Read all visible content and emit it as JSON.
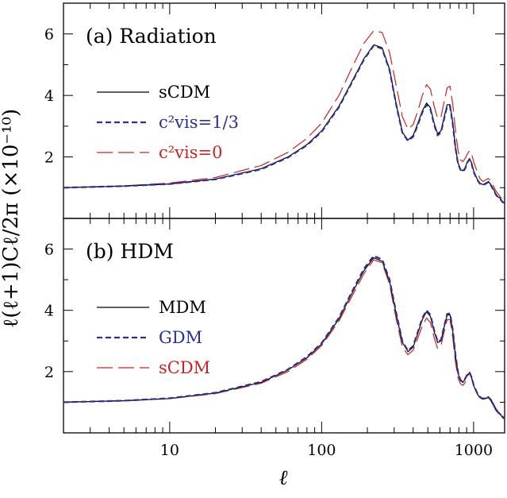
{
  "chart_data": [
    {
      "type": "line",
      "panel_label": "(a) Radiation",
      "x_scale": "log",
      "xlim": [
        2,
        1600
      ],
      "ylim": [
        0,
        7
      ],
      "y_ticks": [
        "2",
        "4",
        "6"
      ],
      "x_ticks": [
        "10",
        "100",
        "1000"
      ],
      "legend_position": "left",
      "series": [
        {
          "name": "sCDM",
          "color": "#000000",
          "dash": "solid",
          "x": [
            2,
            5,
            10,
            20,
            40,
            60,
            80,
            100,
            130,
            160,
            190,
            220,
            250,
            280,
            310,
            340,
            370,
            400,
            430,
            460,
            490,
            520,
            550,
            580,
            610,
            640,
            670,
            700,
            730,
            760,
            790,
            820,
            850,
            880,
            910,
            940,
            970,
            1000,
            1050,
            1100,
            1150,
            1200,
            1250,
            1300,
            1350,
            1400,
            1450,
            1500,
            1550,
            1600
          ],
          "y": [
            1.0,
            1.05,
            1.12,
            1.28,
            1.62,
            2.0,
            2.4,
            2.85,
            3.65,
            4.5,
            5.2,
            5.65,
            5.55,
            4.85,
            3.7,
            2.8,
            2.55,
            2.7,
            3.1,
            3.5,
            3.75,
            3.6,
            3.1,
            2.75,
            2.85,
            3.3,
            3.7,
            3.7,
            3.1,
            2.3,
            1.8,
            1.6,
            1.55,
            1.65,
            1.85,
            1.95,
            1.8,
            1.55,
            1.3,
            1.15,
            1.1,
            1.15,
            1.2,
            1.1,
            0.95,
            0.8,
            0.7,
            0.65,
            0.55,
            0.5
          ]
        },
        {
          "name": "c²vis=1/3",
          "color": "#2b2f8f",
          "dash": "short",
          "x": [
            2,
            5,
            10,
            20,
            40,
            60,
            80,
            100,
            130,
            160,
            190,
            220,
            250,
            280,
            310,
            340,
            370,
            400,
            430,
            460,
            490,
            520,
            550,
            580,
            610,
            640,
            670,
            700,
            730,
            760,
            790,
            820,
            850,
            880,
            910,
            940,
            970,
            1000,
            1050,
            1100,
            1150,
            1200,
            1250,
            1300,
            1350,
            1400,
            1450,
            1500,
            1550,
            1600
          ],
          "y": [
            1.0,
            1.05,
            1.12,
            1.27,
            1.6,
            1.98,
            2.38,
            2.82,
            3.62,
            4.47,
            5.17,
            5.62,
            5.52,
            4.82,
            3.68,
            2.78,
            2.52,
            2.66,
            3.05,
            3.45,
            3.7,
            3.55,
            3.05,
            2.7,
            2.8,
            3.25,
            3.65,
            3.65,
            3.05,
            2.28,
            1.78,
            1.58,
            1.52,
            1.62,
            1.82,
            1.92,
            1.78,
            1.52,
            1.28,
            1.13,
            1.08,
            1.13,
            1.18,
            1.08,
            0.93,
            0.78,
            0.68,
            0.63,
            0.53,
            0.48
          ]
        },
        {
          "name": "c²vis=0",
          "color": "#cc2222",
          "dash": "long",
          "x": [
            2,
            5,
            10,
            20,
            40,
            60,
            80,
            100,
            130,
            160,
            190,
            220,
            250,
            280,
            310,
            340,
            370,
            400,
            430,
            460,
            490,
            520,
            550,
            580,
            610,
            640,
            670,
            700,
            730,
            760,
            790,
            820,
            850,
            880,
            910,
            940,
            970,
            1000,
            1050,
            1100,
            1150,
            1200,
            1250,
            1300,
            1350,
            1400,
            1450,
            1500,
            1550,
            1600
          ],
          "y": [
            1.0,
            1.06,
            1.15,
            1.33,
            1.72,
            2.15,
            2.6,
            3.1,
            4.0,
            4.95,
            5.7,
            6.1,
            6.05,
            5.4,
            4.3,
            3.3,
            2.9,
            3.05,
            3.5,
            4.0,
            4.35,
            4.2,
            3.65,
            3.25,
            3.3,
            3.8,
            4.25,
            4.3,
            3.7,
            2.85,
            2.2,
            1.9,
            1.85,
            1.95,
            2.1,
            2.2,
            2.1,
            1.85,
            1.55,
            1.3,
            1.2,
            1.25,
            1.3,
            1.2,
            1.05,
            0.9,
            0.8,
            0.7,
            0.6,
            0.55
          ]
        }
      ]
    },
    {
      "type": "line",
      "panel_label": "(b) HDM",
      "x_scale": "log",
      "xlim": [
        2,
        1600
      ],
      "ylim": [
        0,
        7
      ],
      "y_ticks": [
        "2",
        "4",
        "6"
      ],
      "x_ticks": [
        "10",
        "100",
        "1000"
      ],
      "legend_position": "left",
      "series": [
        {
          "name": "MDM",
          "color": "#000000",
          "dash": "solid",
          "x": [
            2,
            5,
            10,
            20,
            40,
            60,
            80,
            100,
            130,
            160,
            190,
            220,
            250,
            280,
            310,
            340,
            370,
            400,
            430,
            460,
            490,
            520,
            550,
            580,
            610,
            640,
            670,
            700,
            730,
            760,
            790,
            820,
            850,
            880,
            910,
            940,
            970,
            1000,
            1050,
            1100,
            1150,
            1200,
            1250,
            1300,
            1350,
            1400,
            1450,
            1500,
            1550,
            1600
          ],
          "y": [
            1.0,
            1.05,
            1.12,
            1.3,
            1.65,
            2.05,
            2.45,
            2.9,
            3.72,
            4.6,
            5.3,
            5.72,
            5.6,
            4.95,
            3.85,
            2.95,
            2.65,
            2.8,
            3.25,
            3.7,
            3.95,
            3.8,
            3.3,
            2.95,
            3.0,
            3.45,
            3.85,
            3.85,
            3.3,
            2.5,
            1.95,
            1.7,
            1.65,
            1.75,
            1.9,
            1.95,
            1.8,
            1.55,
            1.3,
            1.15,
            1.1,
            1.12,
            1.15,
            1.05,
            0.9,
            0.75,
            0.65,
            0.6,
            0.5,
            0.45
          ]
        },
        {
          "name": "GDM",
          "color": "#2b2f8f",
          "dash": "short",
          "x": [
            2,
            5,
            10,
            20,
            40,
            60,
            80,
            100,
            130,
            160,
            190,
            220,
            250,
            280,
            310,
            340,
            370,
            400,
            430,
            460,
            490,
            520,
            550,
            580,
            610,
            640,
            670,
            700,
            730,
            760,
            790,
            820,
            850,
            880,
            910,
            940,
            970,
            1000,
            1050,
            1100,
            1150,
            1200,
            1250,
            1300,
            1350,
            1400,
            1450,
            1500,
            1550,
            1600
          ],
          "y": [
            1.0,
            1.05,
            1.13,
            1.31,
            1.67,
            2.07,
            2.48,
            2.93,
            3.76,
            4.65,
            5.36,
            5.78,
            5.66,
            5.0,
            3.9,
            2.98,
            2.68,
            2.84,
            3.3,
            3.75,
            4.0,
            3.85,
            3.35,
            2.98,
            3.03,
            3.48,
            3.88,
            3.9,
            3.35,
            2.53,
            1.97,
            1.72,
            1.67,
            1.77,
            1.92,
            1.97,
            1.82,
            1.57,
            1.32,
            1.17,
            1.12,
            1.14,
            1.17,
            1.07,
            0.92,
            0.77,
            0.67,
            0.61,
            0.51,
            0.46
          ]
        },
        {
          "name": "sCDM",
          "color": "#cc2222",
          "dash": "long",
          "x": [
            2,
            5,
            10,
            20,
            40,
            60,
            80,
            100,
            130,
            160,
            190,
            220,
            250,
            280,
            310,
            340,
            370,
            400,
            430,
            460,
            490,
            520,
            550,
            580,
            610,
            640,
            670,
            700,
            730,
            760,
            790,
            820,
            850,
            880,
            910,
            940,
            970,
            1000,
            1050,
            1100,
            1150,
            1200,
            1250,
            1300,
            1350,
            1400,
            1450,
            1500,
            1550,
            1600
          ],
          "y": [
            1.0,
            1.05,
            1.12,
            1.28,
            1.62,
            2.0,
            2.4,
            2.85,
            3.65,
            4.5,
            5.2,
            5.65,
            5.55,
            4.85,
            3.7,
            2.8,
            2.55,
            2.7,
            3.1,
            3.5,
            3.75,
            3.6,
            3.1,
            2.75,
            2.85,
            3.3,
            3.7,
            3.7,
            3.1,
            2.3,
            1.8,
            1.6,
            1.55,
            1.65,
            1.85,
            1.95,
            1.8,
            1.55,
            1.3,
            1.15,
            1.1,
            1.15,
            1.2,
            1.1,
            0.95,
            0.8,
            0.7,
            0.65,
            0.55,
            0.5
          ]
        }
      ]
    }
  ],
  "ylabel": "ℓ(ℓ+1)Cℓ/2π  (×10⁻¹⁰)",
  "xlabel": "ℓ"
}
